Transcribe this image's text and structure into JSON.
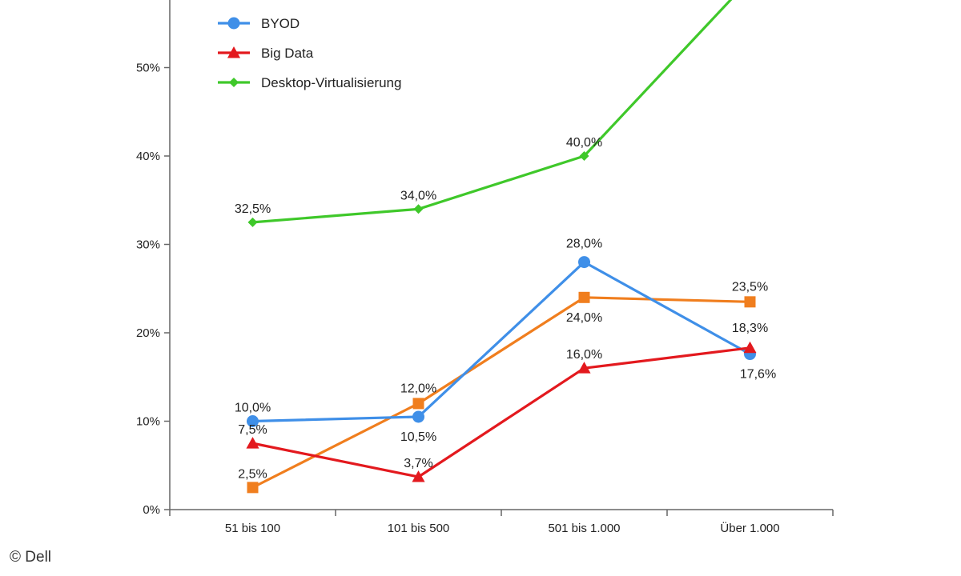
{
  "credit": "© Dell",
  "chart_data": {
    "type": "line",
    "title": "",
    "xlabel": "",
    "ylabel": "",
    "categories": [
      "51 bis 100",
      "101 bis 500",
      "501 bis 1.000",
      "Über 1.000"
    ],
    "ylim": [
      0,
      60
    ],
    "yticks": [
      0,
      10,
      20,
      30,
      40,
      50
    ],
    "ytick_labels": [
      "0%",
      "10%",
      "20%",
      "30%",
      "40%",
      "50%"
    ],
    "grid": false,
    "legend_position": "top-left",
    "series": [
      {
        "name": "",
        "color": "#f07e1e",
        "marker": "square",
        "values": [
          2.5,
          12.0,
          24.0,
          23.5
        ],
        "labels": [
          "2,5%",
          "12,0%",
          "24,0%",
          "23,5%"
        ]
      },
      {
        "name": "BYOD",
        "color": "#3f8fe8",
        "marker": "circle",
        "values": [
          10.0,
          10.5,
          28.0,
          17.6
        ],
        "labels": [
          "10,0%",
          "10,5%",
          "28,0%",
          "17,6%"
        ]
      },
      {
        "name": "Big Data",
        "color": "#e3191e",
        "marker": "triangle",
        "values": [
          7.5,
          3.7,
          16.0,
          18.3
        ],
        "labels": [
          "7,5%",
          "3,7%",
          "16,0%",
          "18,3%"
        ]
      },
      {
        "name": "Desktop-Virtualisierung",
        "color": "#3fc82a",
        "marker": "diamond",
        "values": [
          32.5,
          34.0,
          40.0,
          60.0
        ],
        "labels": [
          "32,5%",
          "34,0%",
          "40,0%",
          ""
        ]
      }
    ]
  }
}
